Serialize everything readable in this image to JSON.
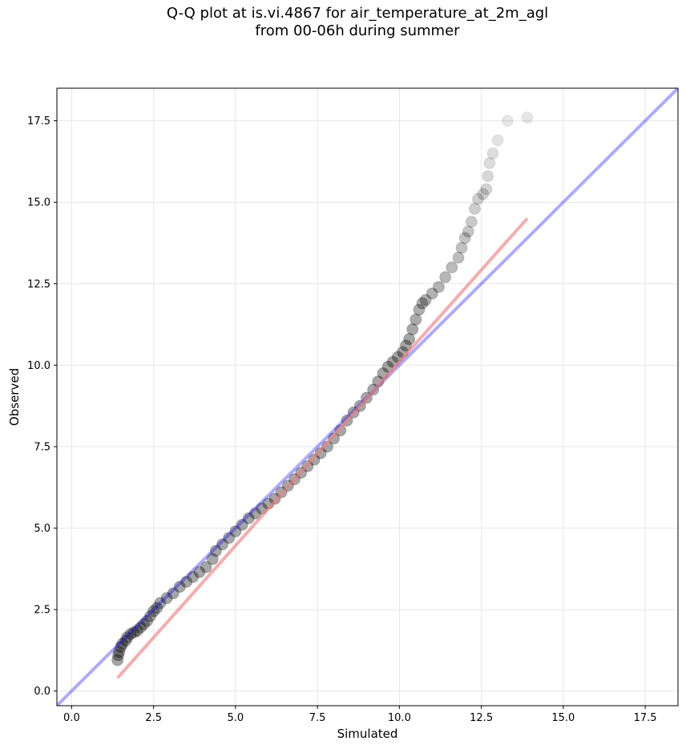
{
  "chart_data": {
    "type": "scatter",
    "title_line1": "Q-Q plot at is.vi.4867 for air_temperature_at_2m_agl",
    "title_line2": "from 00-06h during summer",
    "xlabel": "Simulated",
    "ylabel": "Observed",
    "xlim": [
      -0.45,
      18.5
    ],
    "ylim": [
      -0.45,
      18.5
    ],
    "xticks": [
      "0.0",
      "2.5",
      "5.0",
      "7.5",
      "10.0",
      "12.5",
      "15.0",
      "17.5"
    ],
    "yticks": [
      "0.0",
      "2.5",
      "5.0",
      "7.5",
      "10.0",
      "12.5",
      "15.0",
      "17.5"
    ],
    "grid": true,
    "one_to_one_line": {
      "color": "#0000ff",
      "from": [
        -0.45,
        -0.45
      ],
      "to": [
        18.5,
        18.5
      ]
    },
    "fit_line": {
      "color": "#f08080",
      "from": [
        1.4,
        0.4
      ],
      "to": [
        13.9,
        14.5
      ]
    },
    "points": [
      [
        1.4,
        0.95
      ],
      [
        1.42,
        1.1
      ],
      [
        1.45,
        1.2
      ],
      [
        1.5,
        1.35
      ],
      [
        1.55,
        1.45
      ],
      [
        1.65,
        1.55
      ],
      [
        1.7,
        1.65
      ],
      [
        1.8,
        1.75
      ],
      [
        1.9,
        1.8
      ],
      [
        2.0,
        1.85
      ],
      [
        2.1,
        1.95
      ],
      [
        2.2,
        2.05
      ],
      [
        2.3,
        2.15
      ],
      [
        2.4,
        2.3
      ],
      [
        2.5,
        2.45
      ],
      [
        2.6,
        2.55
      ],
      [
        2.7,
        2.7
      ],
      [
        2.9,
        2.85
      ],
      [
        3.1,
        3.0
      ],
      [
        3.3,
        3.2
      ],
      [
        3.5,
        3.35
      ],
      [
        3.7,
        3.5
      ],
      [
        3.9,
        3.65
      ],
      [
        4.1,
        3.8
      ],
      [
        4.3,
        4.05
      ],
      [
        4.4,
        4.3
      ],
      [
        4.6,
        4.5
      ],
      [
        4.8,
        4.7
      ],
      [
        5.0,
        4.9
      ],
      [
        5.2,
        5.1
      ],
      [
        5.4,
        5.3
      ],
      [
        5.6,
        5.45
      ],
      [
        5.8,
        5.6
      ],
      [
        6.0,
        5.75
      ],
      [
        6.2,
        5.9
      ],
      [
        6.4,
        6.1
      ],
      [
        6.6,
        6.3
      ],
      [
        6.8,
        6.5
      ],
      [
        7.0,
        6.7
      ],
      [
        7.2,
        6.9
      ],
      [
        7.4,
        7.1
      ],
      [
        7.6,
        7.3
      ],
      [
        7.8,
        7.5
      ],
      [
        8.0,
        7.75
      ],
      [
        8.2,
        8.0
      ],
      [
        8.4,
        8.3
      ],
      [
        8.6,
        8.55
      ],
      [
        8.8,
        8.75
      ],
      [
        9.0,
        9.0
      ],
      [
        9.2,
        9.25
      ],
      [
        9.35,
        9.5
      ],
      [
        9.5,
        9.75
      ],
      [
        9.65,
        9.95
      ],
      [
        9.8,
        10.1
      ],
      [
        9.95,
        10.25
      ],
      [
        10.1,
        10.4
      ],
      [
        10.2,
        10.6
      ],
      [
        10.3,
        10.8
      ],
      [
        10.4,
        11.1
      ],
      [
        10.5,
        11.4
      ],
      [
        10.6,
        11.7
      ],
      [
        10.7,
        11.9
      ],
      [
        10.8,
        12.0
      ],
      [
        11.0,
        12.2
      ],
      [
        11.2,
        12.4
      ],
      [
        11.4,
        12.7
      ],
      [
        11.6,
        13.0
      ],
      [
        11.8,
        13.3
      ],
      [
        11.9,
        13.6
      ],
      [
        12.0,
        13.9
      ],
      [
        12.1,
        14.1
      ],
      [
        12.2,
        14.4
      ],
      [
        12.3,
        14.8
      ],
      [
        12.4,
        15.1
      ],
      [
        12.55,
        15.25
      ],
      [
        12.65,
        15.4
      ],
      [
        12.7,
        15.8
      ],
      [
        12.75,
        16.2
      ],
      [
        12.85,
        16.5
      ],
      [
        13.0,
        16.9
      ],
      [
        13.3,
        17.5
      ],
      [
        13.9,
        17.6
      ]
    ]
  }
}
